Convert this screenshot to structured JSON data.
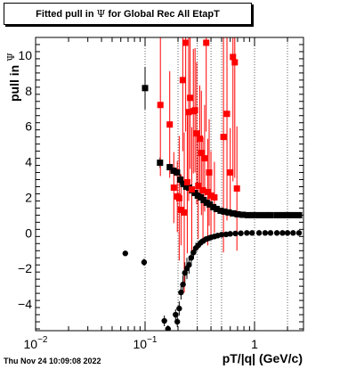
{
  "title": {
    "prefix": "Fitted pull in ",
    "symbol": "Ψ",
    "suffix": " for Global Rec All EtapT"
  },
  "timestamp": "Thu Nov 24 10:09:08 2022",
  "chart_data": {
    "type": "scatter",
    "xlabel": "pT/|q| (GeV/c)",
    "ylabel_prefix": "pull in ",
    "ylabel_symbol": "Ψ",
    "x_scale": "log",
    "xlim": [
      0.01,
      2.8
    ],
    "ylim": [
      -5.5,
      11.0
    ],
    "grid": true,
    "x_major_ticks": [
      {
        "value": 0.01,
        "base": "10",
        "exp": "−2"
      },
      {
        "value": 0.1,
        "base": "10",
        "exp": "−1"
      },
      {
        "value": 1,
        "base": "1",
        "exp": ""
      }
    ],
    "y_tick_labels": [
      {
        "value": -4,
        "text": "−4"
      },
      {
        "value": -2,
        "text": "−2"
      },
      {
        "value": 0,
        "text": "0"
      },
      {
        "value": 2,
        "text": "2"
      },
      {
        "value": 4,
        "text": "4"
      },
      {
        "value": 6,
        "text": "6"
      },
      {
        "value": 8,
        "text": "8"
      },
      {
        "value": 10,
        "text": "10"
      }
    ],
    "series": [
      {
        "color": "#000000",
        "marker": "circle",
        "points": [
          {
            "x": 0.066,
            "y": -1.15,
            "yerr": 0
          },
          {
            "x": 0.098,
            "y": -1.65,
            "yerr": 0.2
          },
          {
            "x": 0.15,
            "y": -4.95,
            "yerr": 0.3
          },
          {
            "x": 0.162,
            "y": -5.4,
            "yerr": 0.2
          },
          {
            "x": 0.19,
            "y": -4.6,
            "yerr": 0.3
          },
          {
            "x": 0.197,
            "y": -5.0,
            "yerr": 0.3
          },
          {
            "x": 0.205,
            "y": -4.25,
            "yerr": 0.4
          },
          {
            "x": 0.213,
            "y": -3.35,
            "yerr": 0.4
          },
          {
            "x": 0.222,
            "y": -2.9,
            "yerr": 0.5
          },
          {
            "x": 0.231,
            "y": -2.25,
            "yerr": 0.6
          },
          {
            "x": 0.241,
            "y": -2.0,
            "yerr": 0.6
          },
          {
            "x": 0.252,
            "y": -1.8,
            "yerr": 0.5
          },
          {
            "x": 0.264,
            "y": -1.4,
            "yerr": 0.4
          },
          {
            "x": 0.277,
            "y": -1.1,
            "yerr": 0.3
          },
          {
            "x": 0.291,
            "y": -0.85,
            "yerr": 0.3
          },
          {
            "x": 0.306,
            "y": -0.7,
            "yerr": 0.2
          },
          {
            "x": 0.322,
            "y": -0.55,
            "yerr": 0.2
          },
          {
            "x": 0.34,
            "y": -0.45,
            "yerr": 0.1
          },
          {
            "x": 0.36,
            "y": -0.35,
            "yerr": 0.1
          },
          {
            "x": 0.38,
            "y": -0.3,
            "yerr": 0
          },
          {
            "x": 0.4,
            "y": -0.25,
            "yerr": 0
          },
          {
            "x": 0.43,
            "y": -0.2,
            "yerr": 0
          },
          {
            "x": 0.46,
            "y": -0.15,
            "yerr": 0
          },
          {
            "x": 0.5,
            "y": -0.1,
            "yerr": 0
          },
          {
            "x": 0.55,
            "y": -0.08,
            "yerr": 0
          },
          {
            "x": 0.6,
            "y": -0.05,
            "yerr": 0
          },
          {
            "x": 0.67,
            "y": -0.03,
            "yerr": 0
          },
          {
            "x": 0.75,
            "y": -0.02,
            "yerr": 0
          },
          {
            "x": 0.85,
            "y": 0.0,
            "yerr": 0
          },
          {
            "x": 0.95,
            "y": 0.0,
            "yerr": 0
          },
          {
            "x": 1.1,
            "y": 0.0,
            "yerr": 0
          },
          {
            "x": 1.25,
            "y": 0.0,
            "yerr": 0
          },
          {
            "x": 1.4,
            "y": 0.0,
            "yerr": 0
          },
          {
            "x": 1.6,
            "y": 0.0,
            "yerr": 0
          },
          {
            "x": 1.8,
            "y": 0.0,
            "yerr": 0
          },
          {
            "x": 2.0,
            "y": 0.0,
            "yerr": 0
          },
          {
            "x": 2.25,
            "y": 0.0,
            "yerr": 0
          },
          {
            "x": 2.55,
            "y": 0.0,
            "yerr": 0
          }
        ]
      },
      {
        "color": "#000000",
        "marker": "square",
        "points": [
          {
            "x": 0.1,
            "y": 8.15,
            "yerr": 1.2
          },
          {
            "x": 0.137,
            "y": 3.95,
            "yerr": 0.3
          },
          {
            "x": 0.168,
            "y": 3.7,
            "yerr": 0.2
          },
          {
            "x": 0.182,
            "y": 3.5,
            "yerr": 0.2
          },
          {
            "x": 0.196,
            "y": 3.4,
            "yerr": 0.2
          },
          {
            "x": 0.21,
            "y": 3.0,
            "yerr": 0.3
          },
          {
            "x": 0.224,
            "y": 2.75,
            "yerr": 0.2
          },
          {
            "x": 0.238,
            "y": 2.6,
            "yerr": 0.2
          },
          {
            "x": 0.253,
            "y": 2.55,
            "yerr": 0.2
          },
          {
            "x": 0.268,
            "y": 2.4,
            "yerr": 0.2
          },
          {
            "x": 0.285,
            "y": 2.25,
            "yerr": 0.1
          },
          {
            "x": 0.303,
            "y": 2.1,
            "yerr": 0.1
          },
          {
            "x": 0.322,
            "y": 2.0,
            "yerr": 0.1
          },
          {
            "x": 0.343,
            "y": 1.85,
            "yerr": 0.1
          },
          {
            "x": 0.366,
            "y": 1.7,
            "yerr": 0.1
          },
          {
            "x": 0.39,
            "y": 1.6,
            "yerr": 0
          },
          {
            "x": 0.42,
            "y": 1.45,
            "yerr": 0
          },
          {
            "x": 0.45,
            "y": 1.35,
            "yerr": 0
          },
          {
            "x": 0.49,
            "y": 1.25,
            "yerr": 0
          },
          {
            "x": 0.53,
            "y": 1.2,
            "yerr": 0
          },
          {
            "x": 0.58,
            "y": 1.15,
            "yerr": 0
          },
          {
            "x": 0.64,
            "y": 1.1,
            "yerr": 0
          },
          {
            "x": 0.7,
            "y": 1.05,
            "yerr": 0
          },
          {
            "x": 0.78,
            "y": 1.02,
            "yerr": 0
          },
          {
            "x": 0.87,
            "y": 1.0,
            "yerr": 0
          },
          {
            "x": 0.97,
            "y": 1.0,
            "yerr": 0
          },
          {
            "x": 1.1,
            "y": 1.0,
            "yerr": 0
          },
          {
            "x": 1.25,
            "y": 1.0,
            "yerr": 0
          },
          {
            "x": 1.4,
            "y": 1.0,
            "yerr": 0
          },
          {
            "x": 1.6,
            "y": 1.0,
            "yerr": 0
          },
          {
            "x": 1.8,
            "y": 1.0,
            "yerr": 0
          },
          {
            "x": 2.0,
            "y": 1.0,
            "yerr": 0
          },
          {
            "x": 2.25,
            "y": 1.0,
            "yerr": 0
          },
          {
            "x": 2.55,
            "y": 1.0,
            "yerr": 0
          }
        ]
      },
      {
        "color": "#ff0000",
        "marker": "square",
        "points": [
          {
            "x": 0.138,
            "y": 7.2,
            "yerr": 4.0
          },
          {
            "x": 0.168,
            "y": 6.1,
            "yerr": 3.0
          },
          {
            "x": 0.183,
            "y": 2.55,
            "yerr": 2.0
          },
          {
            "x": 0.197,
            "y": 2.05,
            "yerr": 2.0
          },
          {
            "x": 0.205,
            "y": 1.95,
            "yerr": 3.5
          },
          {
            "x": 0.213,
            "y": 1.3,
            "yerr": 2.0
          },
          {
            "x": 0.221,
            "y": 8.6,
            "yerr": 4.0
          },
          {
            "x": 0.228,
            "y": 1.15,
            "yerr": 4.5
          },
          {
            "x": 0.235,
            "y": 10.7,
            "yerr": 5.0
          },
          {
            "x": 0.243,
            "y": 2.85,
            "yerr": 4.0
          },
          {
            "x": 0.25,
            "y": 6.8,
            "yerr": 5.0
          },
          {
            "x": 0.258,
            "y": 7.6,
            "yerr": 4.0
          },
          {
            "x": 0.267,
            "y": 2.45,
            "yerr": 3.5
          },
          {
            "x": 0.276,
            "y": 6.85,
            "yerr": 3.5
          },
          {
            "x": 0.286,
            "y": 6.9,
            "yerr": 3.5
          },
          {
            "x": 0.296,
            "y": 5.6,
            "yerr": 4.0
          },
          {
            "x": 0.306,
            "y": 2.65,
            "yerr": 3.0
          },
          {
            "x": 0.316,
            "y": 5.3,
            "yerr": 3.0
          },
          {
            "x": 0.327,
            "y": 4.5,
            "yerr": 3.5
          },
          {
            "x": 0.338,
            "y": 2.4,
            "yerr": 3.0
          },
          {
            "x": 0.35,
            "y": 4.2,
            "yerr": 3.0
          },
          {
            "x": 0.362,
            "y": 10.7,
            "yerr": 5.0
          },
          {
            "x": 0.374,
            "y": 2.3,
            "yerr": 3.0
          },
          {
            "x": 0.385,
            "y": 3.4,
            "yerr": 3.0
          },
          {
            "x": 0.4,
            "y": 2.1,
            "yerr": 2.5
          },
          {
            "x": 0.43,
            "y": 2.0,
            "yerr": 2.0
          },
          {
            "x": 0.52,
            "y": 5.4,
            "yerr": 6.5
          },
          {
            "x": 0.56,
            "y": 6.7,
            "yerr": 6.0
          },
          {
            "x": 0.6,
            "y": 3.4,
            "yerr": 2.5
          },
          {
            "x": 0.635,
            "y": 9.9,
            "yerr": 7.0
          },
          {
            "x": 0.66,
            "y": 9.6,
            "yerr": 6.5
          },
          {
            "x": 0.69,
            "y": 2.5,
            "yerr": 3.5
          }
        ]
      }
    ]
  }
}
